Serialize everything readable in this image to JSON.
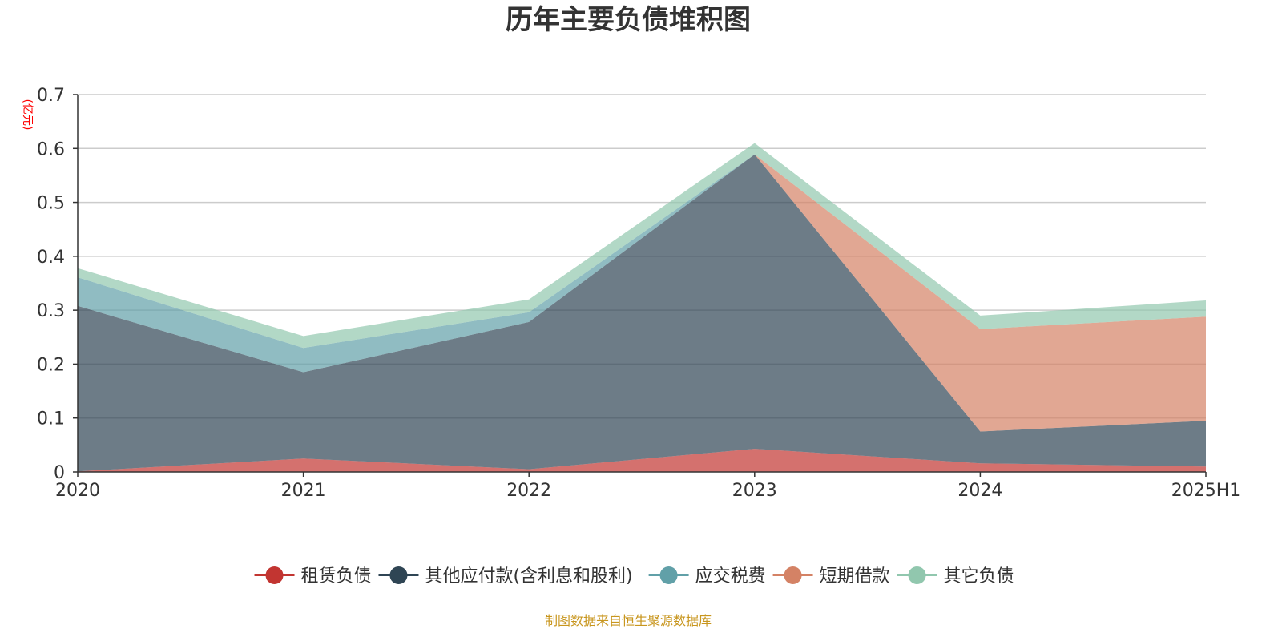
{
  "chart_data": {
    "type": "area",
    "stacked": true,
    "title": "历年主要负债堆积图",
    "y_unit": "(亿元)",
    "categories": [
      "2020",
      "2021",
      "2022",
      "2023",
      "2024",
      "2025H1"
    ],
    "y_tick_labels": [
      "0",
      "0.1",
      "0.2",
      "0.3",
      "0.4",
      "0.5",
      "0.6",
      "0.7"
    ],
    "ylim": [
      0,
      0.7
    ],
    "grid": true,
    "legend_position": "bottom",
    "series": [
      {
        "name": "租赁负债",
        "color": "#c23531",
        "values": [
          0.001,
          0.025,
          0.005,
          0.043,
          0.016,
          0.01
        ]
      },
      {
        "name": "其他应付款(含利息和股利)",
        "color": "#2f4554",
        "values": [
          0.307,
          0.16,
          0.273,
          0.546,
          0.059,
          0.085
        ]
      },
      {
        "name": "应交税费",
        "color": "#61a0a8",
        "values": [
          0.053,
          0.045,
          0.018,
          0.0,
          0.0,
          0.0
        ]
      },
      {
        "name": "短期借款",
        "color": "#d48265",
        "values": [
          0.0,
          0.0,
          0.0,
          0.0,
          0.19,
          0.193
        ]
      },
      {
        "name": "其它负债",
        "color": "#91c7ae",
        "values": [
          0.017,
          0.022,
          0.024,
          0.021,
          0.025,
          0.03
        ]
      }
    ],
    "source_note": "制图数据来自恒生聚源数据库"
  }
}
